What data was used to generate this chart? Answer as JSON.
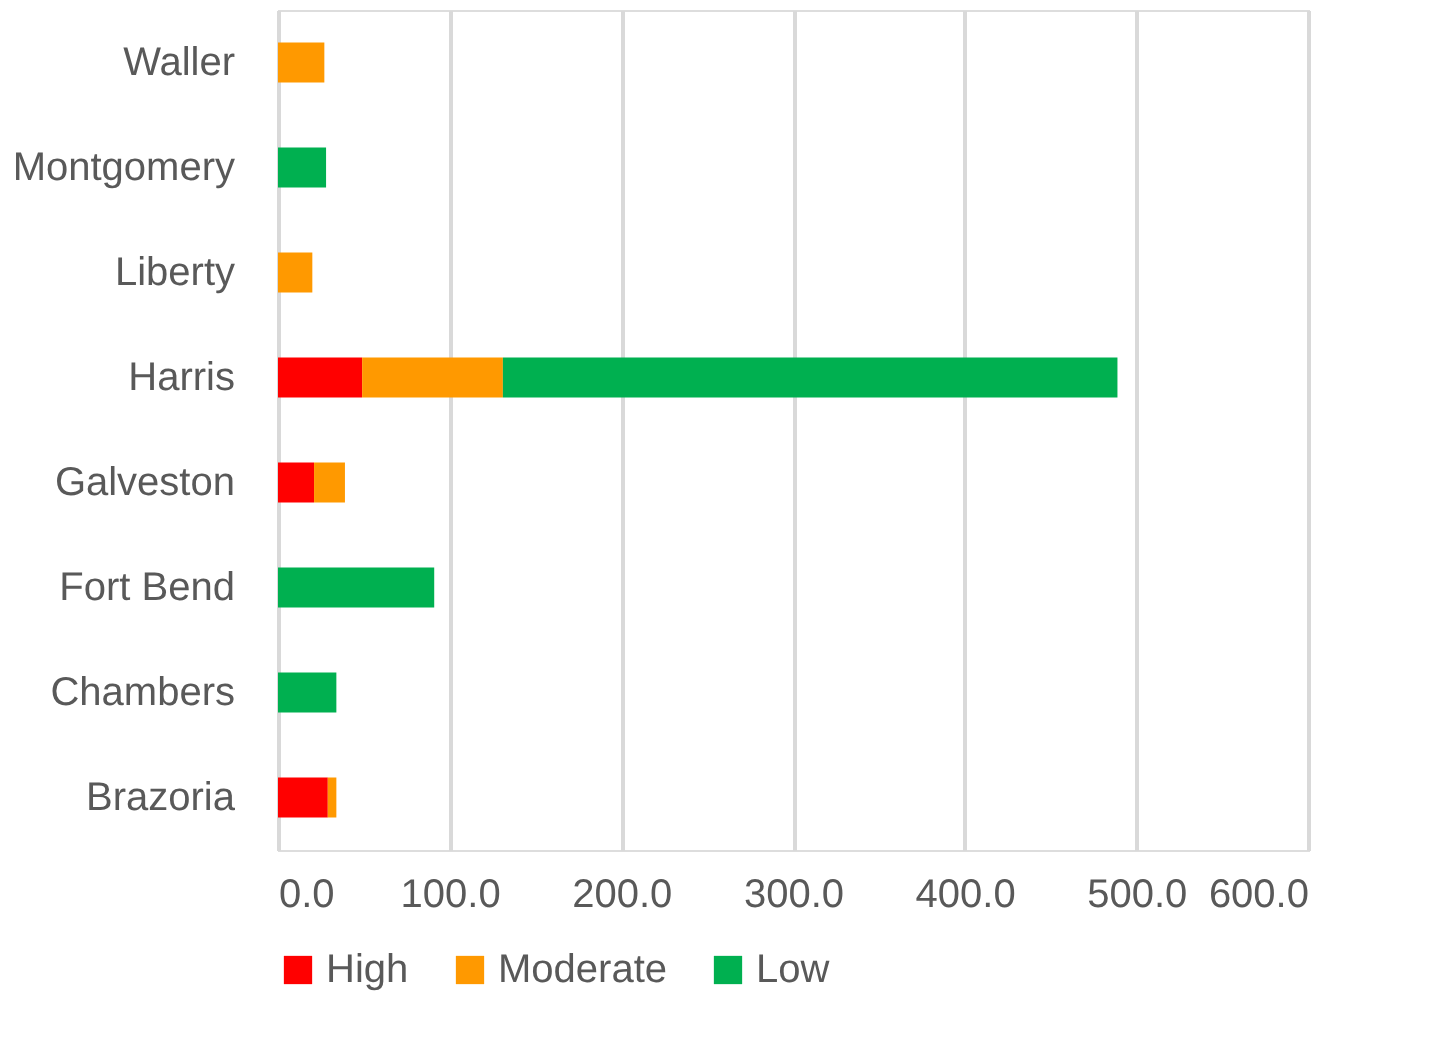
{
  "chart_data": {
    "type": "bar",
    "orientation": "horizontal",
    "stacked": true,
    "categories": [
      "Waller",
      "Montgomery",
      "Liberty",
      "Harris",
      "Galveston",
      "Fort Bend",
      "Chambers",
      "Brazoria"
    ],
    "series": [
      {
        "name": "High",
        "color": "#ff0000",
        "values": [
          null,
          null,
          null,
          49,
          21,
          null,
          null,
          29
        ]
      },
      {
        "name": "Moderate",
        "color": "#ff9900",
        "values": [
          27,
          null,
          20,
          82,
          18,
          null,
          null,
          5
        ]
      },
      {
        "name": "Low",
        "color": "#00b050",
        "values": [
          null,
          28,
          null,
          358,
          null,
          91,
          34,
          null
        ]
      }
    ],
    "xlim": [
      0,
      600
    ],
    "xticks": [
      {
        "value": 0,
        "label": "0.0"
      },
      {
        "value": 100,
        "label": "100.0"
      },
      {
        "value": 200,
        "label": "200.0"
      },
      {
        "value": 300,
        "label": "300.0"
      },
      {
        "value": 400,
        "label": "400.0"
      },
      {
        "value": 500,
        "label": "500.0"
      },
      {
        "value": 600,
        "label": "600.0"
      }
    ],
    "grid": "x",
    "legend": "bottom"
  }
}
